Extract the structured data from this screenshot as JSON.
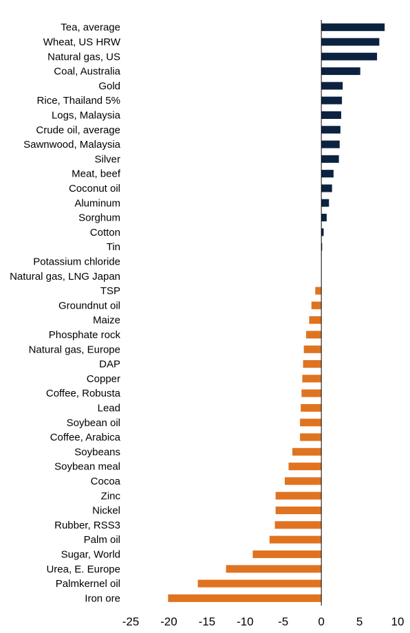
{
  "chart_data": {
    "type": "bar",
    "orientation": "horizontal",
    "categories": [
      "Tea, average",
      "Wheat, US HRW",
      "Natural gas, US",
      "Coal, Australia",
      "Gold",
      "Rice, Thailand 5%",
      "Logs, Malaysia",
      "Crude oil, average",
      "Sawnwood, Malaysia",
      "Silver",
      "Meat, beef",
      "Coconut oil",
      "Aluminum",
      "Sorghum",
      "Cotton",
      "Tin",
      "Potassium chloride",
      "Natural gas, LNG Japan",
      "TSP",
      "Groundnut oil",
      "Maize",
      "Phosphate rock",
      "Natural gas, Europe",
      "DAP",
      "Copper",
      "Coffee, Robusta",
      "Lead",
      "Soybean oil",
      "Coffee, Arabica",
      "Soybeans",
      "Soybean meal",
      "Cocoa",
      "Zinc",
      "Nickel",
      "Rubber, RSS3",
      "Palm oil",
      "Sugar, World",
      "Urea, E. Europe",
      "Palmkernel oil",
      "Iron ore"
    ],
    "values": [
      8.3,
      7.6,
      7.3,
      5.1,
      2.8,
      2.7,
      2.6,
      2.5,
      2.4,
      2.3,
      1.6,
      1.4,
      1.0,
      0.7,
      0.3,
      0.1,
      0.0,
      0.0,
      -0.8,
      -1.3,
      -1.6,
      -2.0,
      -2.3,
      -2.4,
      -2.5,
      -2.6,
      -2.7,
      -2.8,
      -2.8,
      -3.8,
      -4.3,
      -4.8,
      -6.0,
      -6.0,
      -6.1,
      -6.8,
      -9.0,
      -12.5,
      -16.2,
      -20.1
    ],
    "xlim": [
      -25,
      10
    ],
    "xticks": [
      "-25",
      "-20",
      "-15",
      "-10",
      "-5",
      "0",
      "5",
      "10"
    ],
    "positive_color": "#0b2341",
    "negative_color": "#e07320",
    "grid": false
  }
}
